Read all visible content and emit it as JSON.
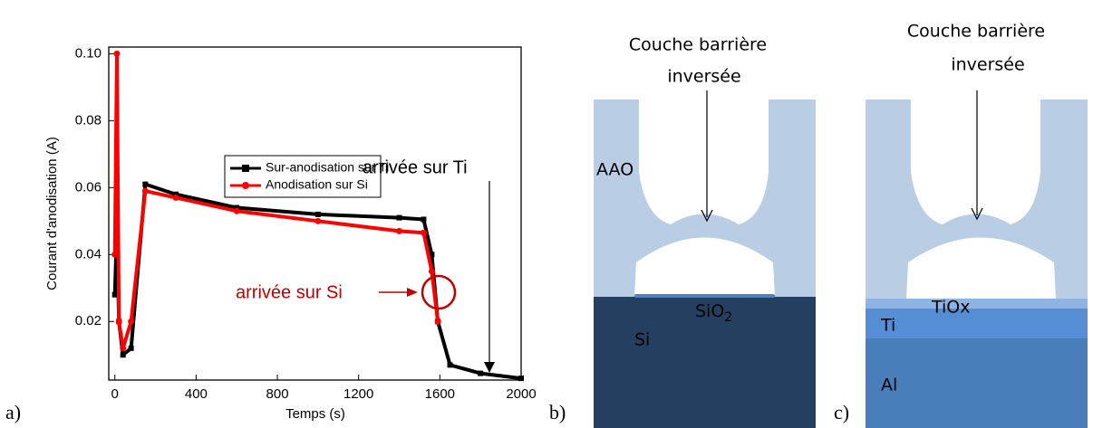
{
  "chart_data": {
    "type": "line",
    "xlabel": "Temps (s)",
    "ylabel": "Courant d'anodisation (A)",
    "x": [
      0,
      10,
      20,
      40,
      80,
      150,
      300,
      600,
      1000,
      1400,
      1520,
      1560,
      1590,
      1650,
      1800,
      2000
    ],
    "series": [
      {
        "name": "Sur-anodisation sur Ti",
        "color": "#000000",
        "marker": "square",
        "values": [
          0.028,
          0.048,
          0.02,
          0.01,
          0.012,
          0.061,
          0.058,
          0.054,
          0.052,
          0.051,
          0.0505,
          0.04,
          0.02,
          0.007,
          0.0045,
          0.003
        ]
      },
      {
        "name": "Anodisation sur Si",
        "color": "#ff0000",
        "marker": "circle",
        "values": [
          0.04,
          0.1,
          0.02,
          0.012,
          0.02,
          0.059,
          0.057,
          0.053,
          0.05,
          0.047,
          0.0465,
          0.035,
          0.02,
          null,
          null,
          null
        ]
      }
    ],
    "xlim": [
      -30,
      2000
    ],
    "xticks": [
      0,
      400,
      800,
      1200,
      1600,
      2000
    ],
    "ylim": [
      0.0025,
      0.102
    ],
    "yticks": [
      0.02,
      0.04,
      0.06,
      0.08,
      {
        "value": 0.1,
        "label": "0.10"
      }
    ],
    "grid": false,
    "legend": "upper center",
    "annotations": [
      "arrivée sur Ti",
      "arrivée sur Si"
    ]
  },
  "panels": {
    "labels": [
      "a)",
      "b)",
      "c)"
    ],
    "diagram_b": {
      "title": [
        "Couche barrière",
        "inversée"
      ],
      "aao": "AAO",
      "oxide": "SiO",
      "oxide_sub": "2",
      "substrate": "Si"
    },
    "diagram_c": {
      "title": [
        "Couche barrière",
        "inversée"
      ],
      "oxide": "TiOx",
      "layer": "Ti",
      "substrate": "Al"
    }
  }
}
